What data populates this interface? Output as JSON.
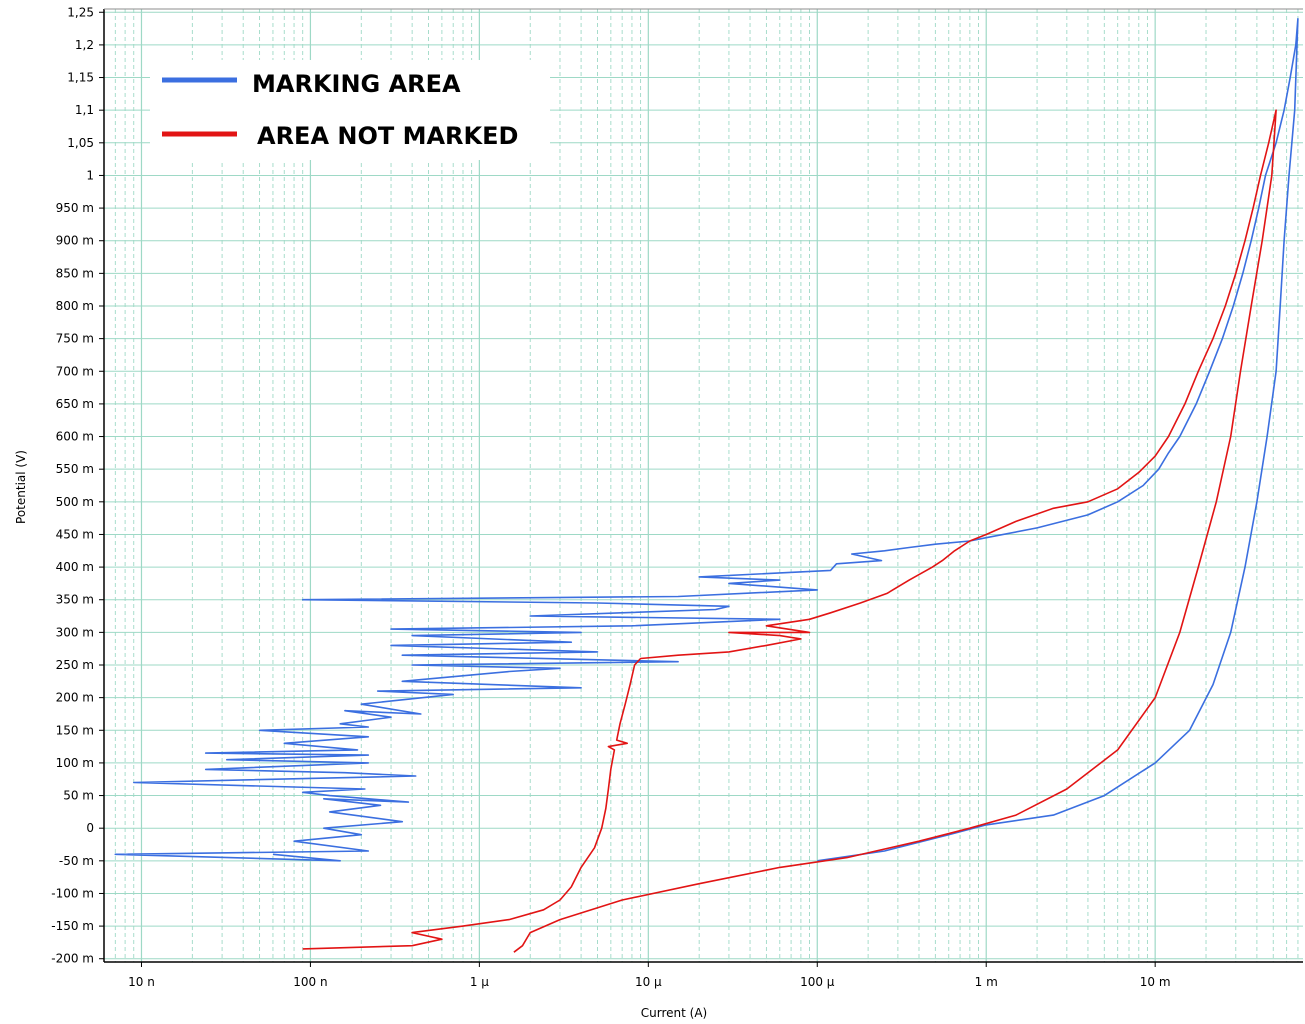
{
  "chart_data": {
    "type": "line",
    "title": "",
    "xlabel": "Current (A)",
    "ylabel": "Potential (V)",
    "x_scale": "log",
    "xlim": [
      6e-09,
      0.075
    ],
    "ylim": [
      -0.205,
      1.255
    ],
    "grid": true,
    "legend_position": "top-left",
    "x_ticks": [
      {
        "value": 1e-08,
        "label": "10 n"
      },
      {
        "value": 1e-07,
        "label": "100 n"
      },
      {
        "value": 1e-06,
        "label": "1 µ"
      },
      {
        "value": 1e-05,
        "label": "10 µ"
      },
      {
        "value": 0.0001,
        "label": "100 µ"
      },
      {
        "value": 0.001,
        "label": "1 m"
      },
      {
        "value": 0.01,
        "label": "10 m"
      }
    ],
    "y_ticks": [
      {
        "value": 1.25,
        "label": "1,25"
      },
      {
        "value": 1.2,
        "label": "1,2"
      },
      {
        "value": 1.15,
        "label": "1,15"
      },
      {
        "value": 1.1,
        "label": "1,1"
      },
      {
        "value": 1.05,
        "label": "1,05"
      },
      {
        "value": 1.0,
        "label": "1"
      },
      {
        "value": 0.95,
        "label": "950 m"
      },
      {
        "value": 0.9,
        "label": "900 m"
      },
      {
        "value": 0.85,
        "label": "850 m"
      },
      {
        "value": 0.8,
        "label": "800 m"
      },
      {
        "value": 0.75,
        "label": "750 m"
      },
      {
        "value": 0.7,
        "label": "700 m"
      },
      {
        "value": 0.65,
        "label": "650 m"
      },
      {
        "value": 0.6,
        "label": "600 m"
      },
      {
        "value": 0.55,
        "label": "550 m"
      },
      {
        "value": 0.5,
        "label": "500 m"
      },
      {
        "value": 0.45,
        "label": "450 m"
      },
      {
        "value": 0.4,
        "label": "400 m"
      },
      {
        "value": 0.35,
        "label": "350 m"
      },
      {
        "value": 0.3,
        "label": "300 m"
      },
      {
        "value": 0.25,
        "label": "250 m"
      },
      {
        "value": 0.2,
        "label": "200 m"
      },
      {
        "value": 0.15,
        "label": "150 m"
      },
      {
        "value": 0.1,
        "label": "100 m"
      },
      {
        "value": 0.05,
        "label": "50 m"
      },
      {
        "value": 0.0,
        "label": "0"
      },
      {
        "value": -0.05,
        "label": "-50 m"
      },
      {
        "value": -0.1,
        "label": "-100 m"
      },
      {
        "value": -0.15,
        "label": "-150 m"
      },
      {
        "value": -0.2,
        "label": "-200 m"
      }
    ],
    "colors": {
      "grid": "#9ed9c6",
      "axis": "#000000"
    },
    "series": [
      {
        "name": "MARKING AREA",
        "color": "#3b6fe0",
        "points": [
          [
            6e-08,
            -0.04
          ],
          [
            1.5e-07,
            -0.05
          ],
          [
            7e-09,
            -0.04
          ],
          [
            2.2e-07,
            -0.035
          ],
          [
            8e-08,
            -0.02
          ],
          [
            2e-07,
            -0.01
          ],
          [
            1.2e-07,
            0.0
          ],
          [
            3.5e-07,
            0.01
          ],
          [
            1.3e-07,
            0.025
          ],
          [
            2.6e-07,
            0.035
          ],
          [
            1.2e-07,
            0.045
          ],
          [
            3.8e-07,
            0.04
          ],
          [
            1.3e-07,
            0.05
          ],
          [
            9e-08,
            0.055
          ],
          [
            2.1e-07,
            0.06
          ],
          [
            9e-09,
            0.07
          ],
          [
            4.2e-07,
            0.08
          ],
          [
            1.6e-07,
            0.085
          ],
          [
            2.4e-08,
            0.09
          ],
          [
            2.2e-07,
            0.1
          ],
          [
            3.2e-08,
            0.105
          ],
          [
            2.2e-07,
            0.112
          ],
          [
            2.4e-08,
            0.115
          ],
          [
            1.9e-07,
            0.12
          ],
          [
            7e-08,
            0.13
          ],
          [
            2.2e-07,
            0.14
          ],
          [
            5e-08,
            0.15
          ],
          [
            2.2e-07,
            0.155
          ],
          [
            1.5e-07,
            0.16
          ],
          [
            3e-07,
            0.17
          ],
          [
            1.6e-07,
            0.18
          ],
          [
            4.5e-07,
            0.175
          ],
          [
            2e-07,
            0.19
          ],
          [
            7e-07,
            0.205
          ],
          [
            2.5e-07,
            0.21
          ],
          [
            4e-06,
            0.215
          ],
          [
            3.5e-07,
            0.225
          ],
          [
            1.5e-06,
            0.24
          ],
          [
            3e-06,
            0.245
          ],
          [
            4e-07,
            0.25
          ],
          [
            1.5e-05,
            0.255
          ],
          [
            3.5e-07,
            0.265
          ],
          [
            5e-06,
            0.27
          ],
          [
            3e-07,
            0.28
          ],
          [
            3.5e-06,
            0.285
          ],
          [
            4e-07,
            0.295
          ],
          [
            4e-06,
            0.3
          ],
          [
            3e-07,
            0.305
          ],
          [
            8e-06,
            0.31
          ],
          [
            6e-05,
            0.32
          ],
          [
            2e-06,
            0.325
          ],
          [
            2.5e-05,
            0.335
          ],
          [
            3e-05,
            0.34
          ],
          [
            5e-06,
            0.345
          ],
          [
            9e-08,
            0.35
          ],
          [
            1.5e-05,
            0.355
          ],
          [
            0.0001,
            0.365
          ],
          [
            3e-05,
            0.375
          ],
          [
            6e-05,
            0.38
          ],
          [
            2e-05,
            0.385
          ],
          [
            0.00012,
            0.395
          ],
          [
            0.00013,
            0.405
          ],
          [
            0.00024,
            0.41
          ],
          [
            0.00016,
            0.42
          ],
          [
            0.00025,
            0.425
          ],
          [
            0.00035,
            0.43
          ],
          [
            0.0005,
            0.435
          ],
          [
            0.0008,
            0.44
          ],
          [
            0.001,
            0.445
          ],
          [
            0.002,
            0.46
          ],
          [
            0.004,
            0.48
          ],
          [
            0.006,
            0.5
          ],
          [
            0.0085,
            0.525
          ],
          [
            0.0105,
            0.55
          ],
          [
            0.012,
            0.575
          ],
          [
            0.014,
            0.6
          ],
          [
            0.0175,
            0.65
          ],
          [
            0.021,
            0.7
          ],
          [
            0.025,
            0.75
          ],
          [
            0.029,
            0.8
          ],
          [
            0.033,
            0.85
          ],
          [
            0.037,
            0.9
          ],
          [
            0.041,
            0.95
          ],
          [
            0.045,
            1.0
          ],
          [
            0.052,
            1.05
          ],
          [
            0.058,
            1.1
          ],
          [
            0.063,
            1.15
          ],
          [
            0.068,
            1.2
          ],
          [
            0.07,
            1.24
          ],
          [
            0.067,
            1.1
          ],
          [
            0.062,
            1.0
          ],
          [
            0.058,
            0.9
          ],
          [
            0.055,
            0.8
          ],
          [
            0.052,
            0.7
          ],
          [
            0.046,
            0.6
          ],
          [
            0.04,
            0.5
          ],
          [
            0.034,
            0.4
          ],
          [
            0.028,
            0.3
          ],
          [
            0.022,
            0.22
          ],
          [
            0.016,
            0.15
          ],
          [
            0.01,
            0.1
          ],
          [
            0.005,
            0.05
          ],
          [
            0.0025,
            0.02
          ],
          [
            0.001,
            0.005
          ],
          [
            0.0006,
            -0.01
          ],
          [
            0.00025,
            -0.035
          ],
          [
            0.0001,
            -0.05
          ]
        ]
      },
      {
        "name": "AREA NOT MARKED",
        "color": "#e21414",
        "points": [
          [
            9e-08,
            -0.185
          ],
          [
            4e-07,
            -0.18
          ],
          [
            6e-07,
            -0.17
          ],
          [
            4e-07,
            -0.16
          ],
          [
            8e-07,
            -0.15
          ],
          [
            1.5e-06,
            -0.14
          ],
          [
            2.4e-06,
            -0.125
          ],
          [
            3e-06,
            -0.11
          ],
          [
            3.5e-06,
            -0.09
          ],
          [
            4e-06,
            -0.06
          ],
          [
            4.8e-06,
            -0.03
          ],
          [
            5.3e-06,
            0.0
          ],
          [
            5.6e-06,
            0.03
          ],
          [
            5.8e-06,
            0.06
          ],
          [
            6e-06,
            0.09
          ],
          [
            6.3e-06,
            0.12
          ],
          [
            5.8e-06,
            0.125
          ],
          [
            7.5e-06,
            0.13
          ],
          [
            6.5e-06,
            0.135
          ],
          [
            6.8e-06,
            0.16
          ],
          [
            7.3e-06,
            0.19
          ],
          [
            7.8e-06,
            0.22
          ],
          [
            8.3e-06,
            0.25
          ],
          [
            9e-06,
            0.26
          ],
          [
            1.5e-05,
            0.265
          ],
          [
            3e-05,
            0.27
          ],
          [
            5e-05,
            0.28
          ],
          [
            8e-05,
            0.29
          ],
          [
            6e-05,
            0.295
          ],
          [
            3e-05,
            0.3
          ],
          [
            9e-05,
            0.3
          ],
          [
            5e-05,
            0.31
          ],
          [
            9e-05,
            0.32
          ],
          [
            0.00012,
            0.33
          ],
          [
            0.00018,
            0.345
          ],
          [
            0.00026,
            0.36
          ],
          [
            0.00035,
            0.38
          ],
          [
            0.00048,
            0.4
          ],
          [
            0.00055,
            0.41
          ],
          [
            0.00065,
            0.425
          ],
          [
            0.0008,
            0.44
          ],
          [
            0.001,
            0.45
          ],
          [
            0.0015,
            0.47
          ],
          [
            0.0025,
            0.49
          ],
          [
            0.004,
            0.5
          ],
          [
            0.006,
            0.52
          ],
          [
            0.008,
            0.545
          ],
          [
            0.01,
            0.57
          ],
          [
            0.012,
            0.6
          ],
          [
            0.015,
            0.65
          ],
          [
            0.018,
            0.7
          ],
          [
            0.022,
            0.75
          ],
          [
            0.026,
            0.8
          ],
          [
            0.03,
            0.85
          ],
          [
            0.034,
            0.9
          ],
          [
            0.038,
            0.95
          ],
          [
            0.042,
            1.0
          ],
          [
            0.047,
            1.05
          ],
          [
            0.052,
            1.1
          ],
          [
            0.049,
            1.0
          ],
          [
            0.043,
            0.9
          ],
          [
            0.037,
            0.8
          ],
          [
            0.032,
            0.7
          ],
          [
            0.028,
            0.6
          ],
          [
            0.023,
            0.5
          ],
          [
            0.018,
            0.4
          ],
          [
            0.014,
            0.3
          ],
          [
            0.01,
            0.2
          ],
          [
            0.006,
            0.12
          ],
          [
            0.003,
            0.06
          ],
          [
            0.0015,
            0.02
          ],
          [
            0.0008,
            0.0
          ],
          [
            0.0004,
            -0.02
          ],
          [
            0.00015,
            -0.045
          ],
          [
            6e-05,
            -0.06
          ],
          [
            2e-05,
            -0.085
          ],
          [
            7e-06,
            -0.11
          ],
          [
            3e-06,
            -0.14
          ],
          [
            2e-06,
            -0.16
          ],
          [
            1.8e-06,
            -0.18
          ],
          [
            1.6e-06,
            -0.19
          ]
        ]
      }
    ]
  }
}
